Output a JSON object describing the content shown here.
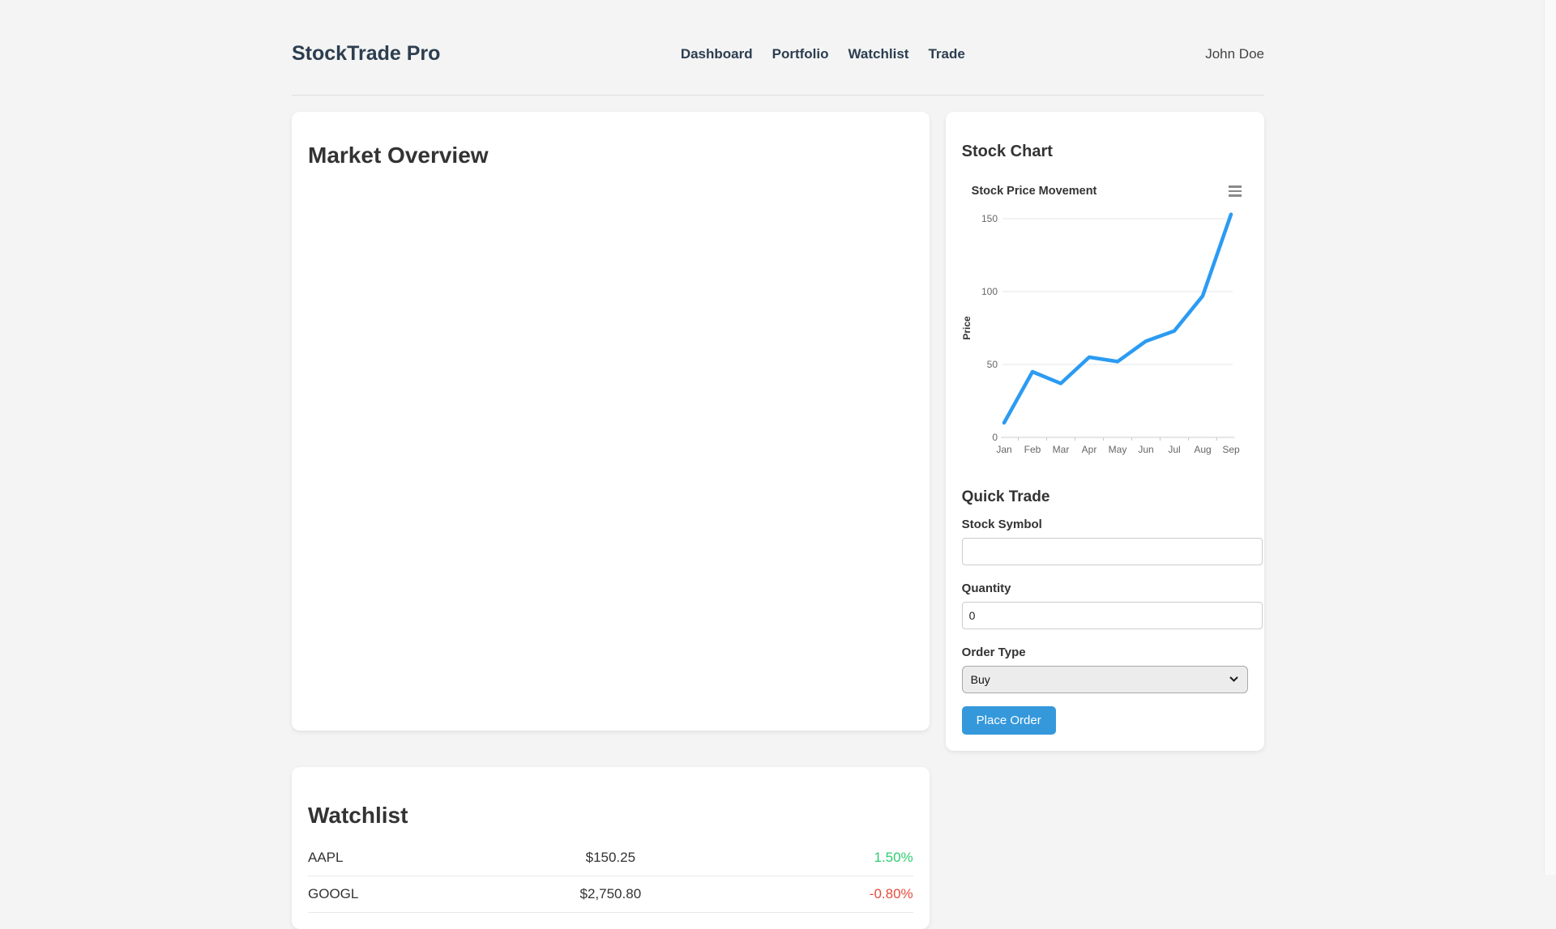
{
  "header": {
    "brand": "StockTrade Pro",
    "nav": [
      {
        "label": "Dashboard"
      },
      {
        "label": "Portfolio"
      },
      {
        "label": "Watchlist"
      },
      {
        "label": "Trade"
      }
    ],
    "user": "John Doe"
  },
  "market_overview": {
    "title": "Market Overview"
  },
  "stock_chart_panel": {
    "title": "Stock Chart"
  },
  "chart_data": {
    "type": "line",
    "title": "Stock Price Movement",
    "categories": [
      "Jan",
      "Feb",
      "Mar",
      "Apr",
      "May",
      "Jun",
      "Jul",
      "Aug",
      "Sep"
    ],
    "values": [
      10,
      45,
      37,
      55,
      52,
      66,
      73,
      97,
      153
    ],
    "xlabel": "",
    "ylabel": "Price",
    "yticks": [
      0,
      50,
      100,
      150
    ],
    "ylim": [
      0,
      160
    ],
    "grid": true,
    "legend": false,
    "line_color": "#2b9bf3"
  },
  "quick_trade": {
    "title": "Quick Trade",
    "symbol_label": "Stock Symbol",
    "symbol_value": "",
    "quantity_label": "Quantity",
    "quantity_value": "0",
    "order_type_label": "Order Type",
    "order_type_value": "Buy",
    "submit_label": "Place Order"
  },
  "watchlist": {
    "title": "Watchlist",
    "items": [
      {
        "symbol": "AAPL",
        "price": "$150.25",
        "change": "1.50%",
        "direction": "up"
      },
      {
        "symbol": "GOOGL",
        "price": "$2,750.80",
        "change": "-0.80%",
        "direction": "down"
      }
    ]
  },
  "colors": {
    "accent_blue": "#3498db",
    "chart_line": "#2b9bf3",
    "positive": "#2ecc71",
    "negative": "#e74c3c"
  }
}
